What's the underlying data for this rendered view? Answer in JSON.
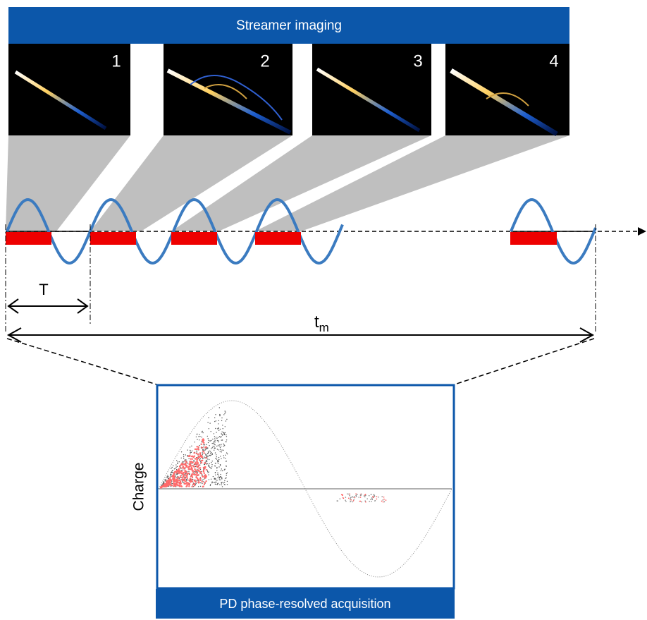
{
  "header": {
    "title": "Streamer imaging"
  },
  "images": [
    {
      "label": "1"
    },
    {
      "label": "2"
    },
    {
      "label": "3"
    },
    {
      "label": "4"
    }
  ],
  "timeline": {
    "period_label": "T",
    "duration_label": {
      "base": "t",
      "subscript": "m"
    }
  },
  "plot": {
    "y_label": "Charge",
    "caption": "PD phase-resolved acquisition"
  }
}
